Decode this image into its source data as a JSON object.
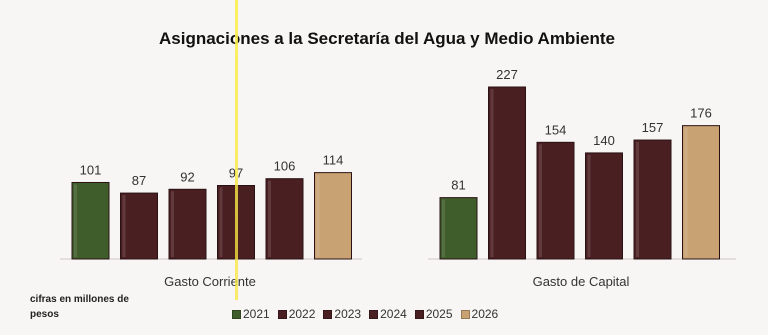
{
  "chart_data": {
    "type": "bar",
    "title": "Asignaciones a la Secretaría del Agua y Medio Ambiente",
    "groups": [
      "Gasto Corriente",
      "Gasto de Capital"
    ],
    "series": [
      {
        "name": "2021",
        "values": [
          101,
          81
        ],
        "color": "#3f5d2b"
      },
      {
        "name": "2022",
        "values": [
          87,
          227
        ],
        "color": "#4a1f22"
      },
      {
        "name": "2023",
        "values": [
          92,
          154
        ],
        "color": "#4a1f22"
      },
      {
        "name": "2024",
        "values": [
          97,
          140
        ],
        "color": "#4a1f22"
      },
      {
        "name": "2025",
        "values": [
          106,
          157
        ],
        "color": "#4a1f22"
      },
      {
        "name": "2026",
        "values": [
          114,
          176
        ],
        "color": "#c9a273"
      }
    ],
    "legend_placement": "bottom",
    "ylim": [
      0,
      227
    ],
    "note": "cifras en millones de pesos"
  }
}
